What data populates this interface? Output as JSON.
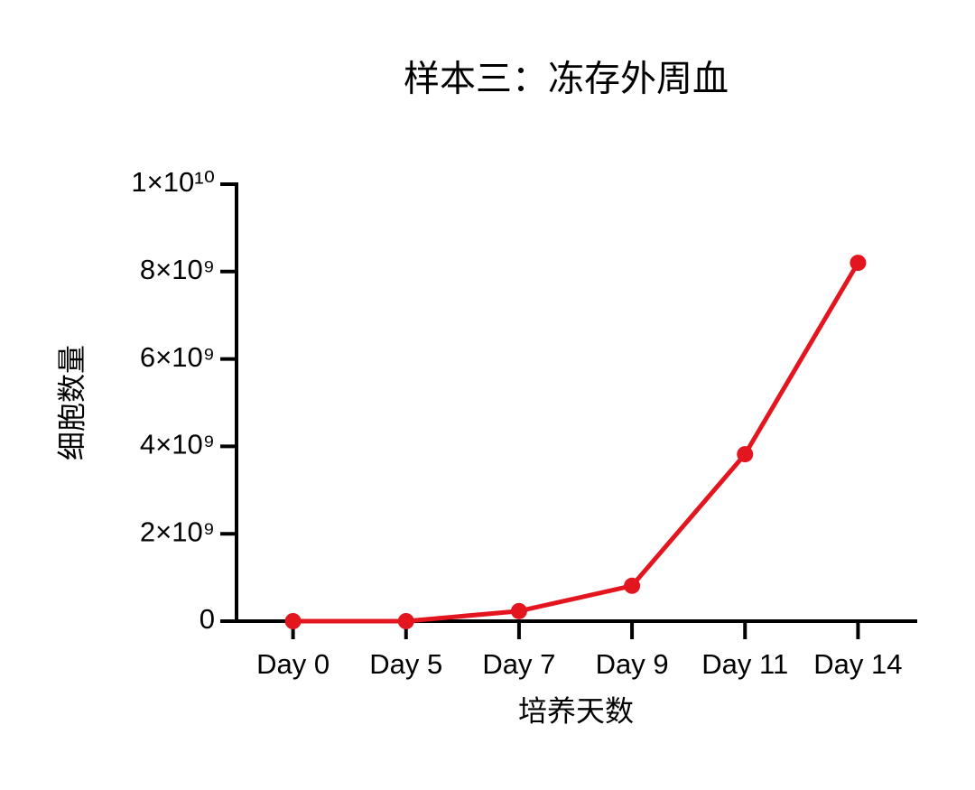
{
  "chart_data": {
    "type": "line",
    "title": "样本三：冻存外周血",
    "x_label": "培养天数",
    "y_label": "细胞数量",
    "categories": [
      "Day 0",
      "Day 5",
      "Day 7",
      "Day 9",
      "Day 11",
      "Day 14"
    ],
    "series": [
      {
        "name": "样本三",
        "color": "#e3151f",
        "values": [
          0,
          0,
          230000000,
          810000000,
          3820000000,
          8200000000
        ]
      }
    ],
    "ylim": [
      0,
      10000000000
    ],
    "yticks": [
      0,
      {
        "value": 2000000000,
        "label": "2×10⁹"
      },
      {
        "value": 4000000000,
        "label": "4×10⁹"
      },
      {
        "value": 6000000000,
        "label": "6×10⁹"
      },
      {
        "value": 8000000000,
        "label": "8×10⁹"
      },
      {
        "value": 10000000000,
        "label": "1×10¹⁰"
      }
    ],
    "grid": false
  }
}
